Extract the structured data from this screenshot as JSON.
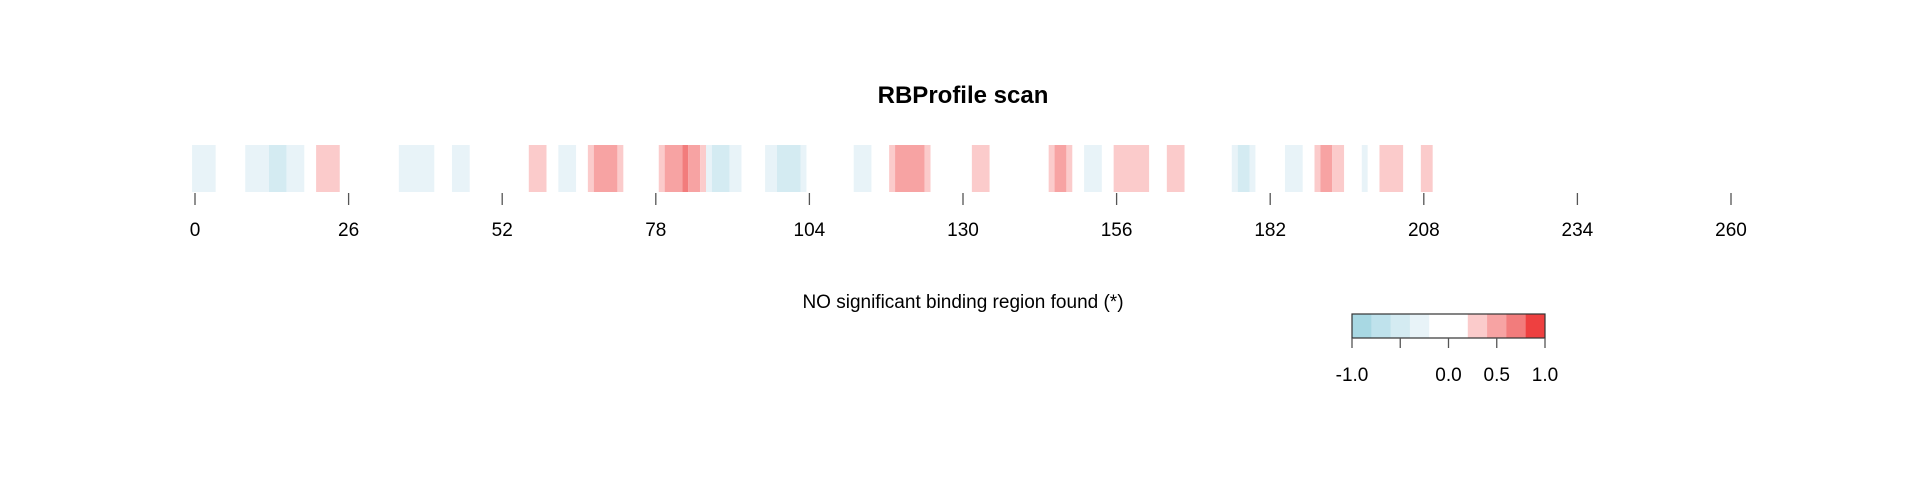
{
  "chart_data": {
    "type": "heatmap",
    "title": "RBProfile scan",
    "xlabel": "",
    "ylabel": "",
    "xlim": [
      0,
      260
    ],
    "x_ticks": [
      "0",
      "26",
      "52",
      "78",
      "104",
      "130",
      "156",
      "182",
      "208",
      "234",
      "260"
    ],
    "segments": [
      {
        "start": -0.5,
        "end": 3.5,
        "value": -0.2
      },
      {
        "start": 8.5,
        "end": 12.5,
        "value": -0.2
      },
      {
        "start": 12.5,
        "end": 15.5,
        "value": -0.4
      },
      {
        "start": 15.5,
        "end": 18.5,
        "value": -0.2
      },
      {
        "start": 20.5,
        "end": 24.5,
        "value": 0.4
      },
      {
        "start": 34.5,
        "end": 40.5,
        "value": -0.2
      },
      {
        "start": 43.5,
        "end": 46.5,
        "value": -0.2
      },
      {
        "start": 56.5,
        "end": 59.5,
        "value": 0.4
      },
      {
        "start": 61.5,
        "end": 64.5,
        "value": -0.2
      },
      {
        "start": 66.5,
        "end": 67.5,
        "value": 0.4
      },
      {
        "start": 67.5,
        "end": 71.5,
        "value": 0.6
      },
      {
        "start": 71.5,
        "end": 72.5,
        "value": 0.4
      },
      {
        "start": 78.5,
        "end": 79.5,
        "value": 0.4
      },
      {
        "start": 79.5,
        "end": 82.5,
        "value": 0.6
      },
      {
        "start": 82.5,
        "end": 83.5,
        "value": 0.8
      },
      {
        "start": 83.5,
        "end": 85.5,
        "value": 0.6
      },
      {
        "start": 85.5,
        "end": 86.5,
        "value": 0.4
      },
      {
        "start": 86.5,
        "end": 87.5,
        "value": -0.2
      },
      {
        "start": 87.5,
        "end": 90.5,
        "value": -0.4
      },
      {
        "start": 90.5,
        "end": 92.5,
        "value": -0.2
      },
      {
        "start": 96.5,
        "end": 98.5,
        "value": -0.2
      },
      {
        "start": 98.5,
        "end": 102.5,
        "value": -0.4
      },
      {
        "start": 102.5,
        "end": 103.5,
        "value": -0.2
      },
      {
        "start": 111.5,
        "end": 114.5,
        "value": -0.2
      },
      {
        "start": 117.5,
        "end": 118.5,
        "value": 0.4
      },
      {
        "start": 118.5,
        "end": 123.5,
        "value": 0.6
      },
      {
        "start": 123.5,
        "end": 124.5,
        "value": 0.4
      },
      {
        "start": 131.5,
        "end": 134.5,
        "value": 0.4
      },
      {
        "start": 144.5,
        "end": 145.5,
        "value": 0.4
      },
      {
        "start": 145.5,
        "end": 147.5,
        "value": 0.6
      },
      {
        "start": 147.5,
        "end": 148.5,
        "value": 0.4
      },
      {
        "start": 150.5,
        "end": 153.5,
        "value": -0.2
      },
      {
        "start": 155.5,
        "end": 161.5,
        "value": 0.4
      },
      {
        "start": 164.5,
        "end": 167.5,
        "value": 0.4
      },
      {
        "start": 175.5,
        "end": 176.5,
        "value": -0.2
      },
      {
        "start": 176.5,
        "end": 178.5,
        "value": -0.4
      },
      {
        "start": 178.5,
        "end": 179.5,
        "value": -0.2
      },
      {
        "start": 184.5,
        "end": 187.5,
        "value": -0.2
      },
      {
        "start": 189.5,
        "end": 190.5,
        "value": 0.4
      },
      {
        "start": 190.5,
        "end": 192.5,
        "value": 0.6
      },
      {
        "start": 192.5,
        "end": 194.5,
        "value": 0.4
      },
      {
        "start": 197.5,
        "end": 198.5,
        "value": -0.2
      },
      {
        "start": 200.5,
        "end": 204.5,
        "value": 0.4
      },
      {
        "start": 207.5,
        "end": 209.5,
        "value": 0.4
      }
    ],
    "annotation": "NO significant binding region found (*)",
    "legend": {
      "colors": [
        "#a8d8e3",
        "#bfe2ec",
        "#d4ebf2",
        "#e8f3f8",
        "#ffffff",
        "#ffffff",
        "#fbcbcb",
        "#f7a3a3",
        "#f27c7c",
        "#ee4040"
      ],
      "ticks": [
        -1.0,
        -0.5,
        0.0,
        0.5,
        1.0
      ],
      "tick_labels": [
        "-1.0",
        "",
        "0.0",
        "0.5",
        "1.0"
      ]
    }
  }
}
